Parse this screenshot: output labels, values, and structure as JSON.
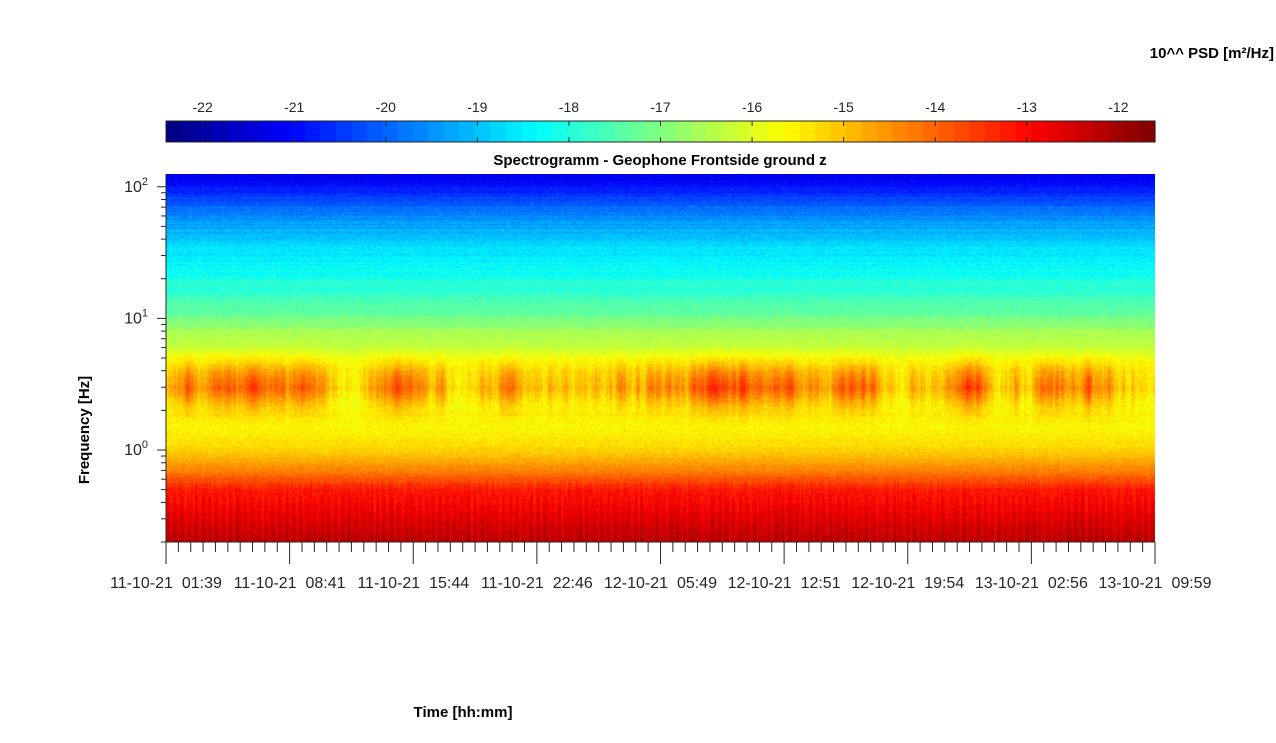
{
  "chart_data": {
    "type": "heatmap",
    "title": "Spectrogramm - Geophone Frontside ground z",
    "xlabel": "Time [hh:mm]",
    "ylabel": "Frequency [Hz]",
    "colorbar_label": "10^^ PSD [m²/Hz]",
    "colormap": "jet",
    "y_scale": "log",
    "ylim": [
      0.2,
      125
    ],
    "clim": [
      -22.4,
      -11.6
    ],
    "colorbar_ticks": [
      "-22",
      "-21",
      "-20",
      "-19",
      "-18",
      "-17",
      "-16",
      "-15",
      "-14",
      "-13",
      "-12"
    ],
    "colorbar_tick_values": [
      -22,
      -21,
      -20,
      -19,
      -18,
      -17,
      -16,
      -15,
      -14,
      -13,
      -12
    ],
    "y_ticks": [
      {
        "value": 100,
        "base": "10",
        "exp": "2"
      },
      {
        "value": 10,
        "base": "10",
        "exp": "1"
      },
      {
        "value": 1,
        "base": "10",
        "exp": "0"
      }
    ],
    "x_tick_labels": [
      "11-10-21  01:39",
      "11-10-21  08:41",
      "11-10-21  15:44",
      "11-10-21  22:46",
      "12-10-21  05:49",
      "12-10-21  12:51",
      "12-10-21  19:54",
      "13-10-21  02:56",
      "13-10-21  09:59"
    ],
    "x_minor_ticks_per_interval": 10,
    "psd_profile": [
      {
        "frequency_hz": 0.2,
        "log10_psd": -12.2
      },
      {
        "frequency_hz": 0.3,
        "log10_psd": -12.6
      },
      {
        "frequency_hz": 0.5,
        "log10_psd": -13.2
      },
      {
        "frequency_hz": 0.7,
        "log10_psd": -14.3
      },
      {
        "frequency_hz": 1.0,
        "log10_psd": -15.2
      },
      {
        "frequency_hz": 1.5,
        "log10_psd": -15.6
      },
      {
        "frequency_hz": 2.2,
        "log10_psd": -15.2
      },
      {
        "frequency_hz": 3.0,
        "log10_psd": -14.4
      },
      {
        "frequency_hz": 4.0,
        "log10_psd": -14.9
      },
      {
        "frequency_hz": 6.0,
        "log10_psd": -16.2
      },
      {
        "frequency_hz": 8.0,
        "log10_psd": -16.6
      },
      {
        "frequency_hz": 12.0,
        "log10_psd": -17.4
      },
      {
        "frequency_hz": 20.0,
        "log10_psd": -18.1
      },
      {
        "frequency_hz": 35.0,
        "log10_psd": -18.7
      },
      {
        "frequency_hz": 60.0,
        "log10_psd": -19.6
      },
      {
        "frequency_hz": 90.0,
        "log10_psd": -20.6
      },
      {
        "frequency_hz": 125.0,
        "log10_psd": -21.3
      }
    ]
  },
  "colors": {
    "text": "#262626",
    "axis": "#262626",
    "background": "#ffffff"
  }
}
